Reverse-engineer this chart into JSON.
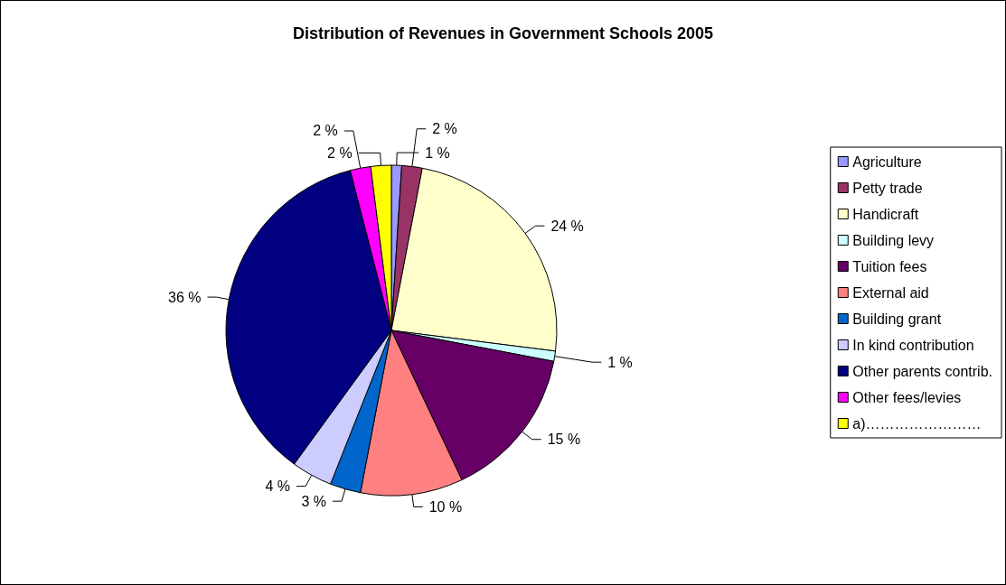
{
  "chart_data": {
    "type": "pie",
    "title": "Distribution of Revenues in Government Schools 2005",
    "categories": [
      "Agriculture",
      "Petty trade",
      "Handicraft",
      "Building levy",
      "Tuition fees",
      "External aid",
      "Building grant",
      "In kind contribution",
      "Other parents contrib.",
      "Other fees/levies",
      "a)……………………"
    ],
    "values": [
      1,
      2,
      24,
      1,
      15,
      10,
      3,
      4,
      36,
      2,
      2
    ],
    "value_labels": [
      "1 %",
      "2 %",
      "24 %",
      "1 %",
      "15 %",
      "10 %",
      "3 %",
      "4 %",
      "36 %",
      "2 %",
      "2 %"
    ],
    "colors": [
      "#9999ff",
      "#993366",
      "#ffffcc",
      "#ccffff",
      "#660066",
      "#ff8080",
      "#0066cc",
      "#ccccff",
      "#000080",
      "#ff00ff",
      "#ffff00"
    ],
    "legend": "right"
  }
}
